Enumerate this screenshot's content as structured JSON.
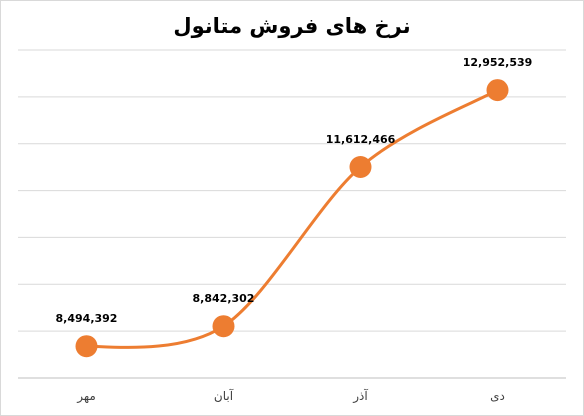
{
  "chart_data": {
    "type": "line",
    "title": "نرخ های فروش متانول",
    "categories": [
      "مهر",
      "آبان",
      "آذر",
      "دی"
    ],
    "values": [
      8494392,
      8842302,
      11612466,
      12952539
    ],
    "value_labels": [
      "8,494,392",
      "8,842,302",
      "11,612,466",
      "12,952,539"
    ],
    "grid": true,
    "legend": "none",
    "smooth": true,
    "series_color": "#ED7D31",
    "grid_color": "#d9d9d9",
    "axis_color": "#bfbfbf",
    "text_color": "#000000"
  }
}
